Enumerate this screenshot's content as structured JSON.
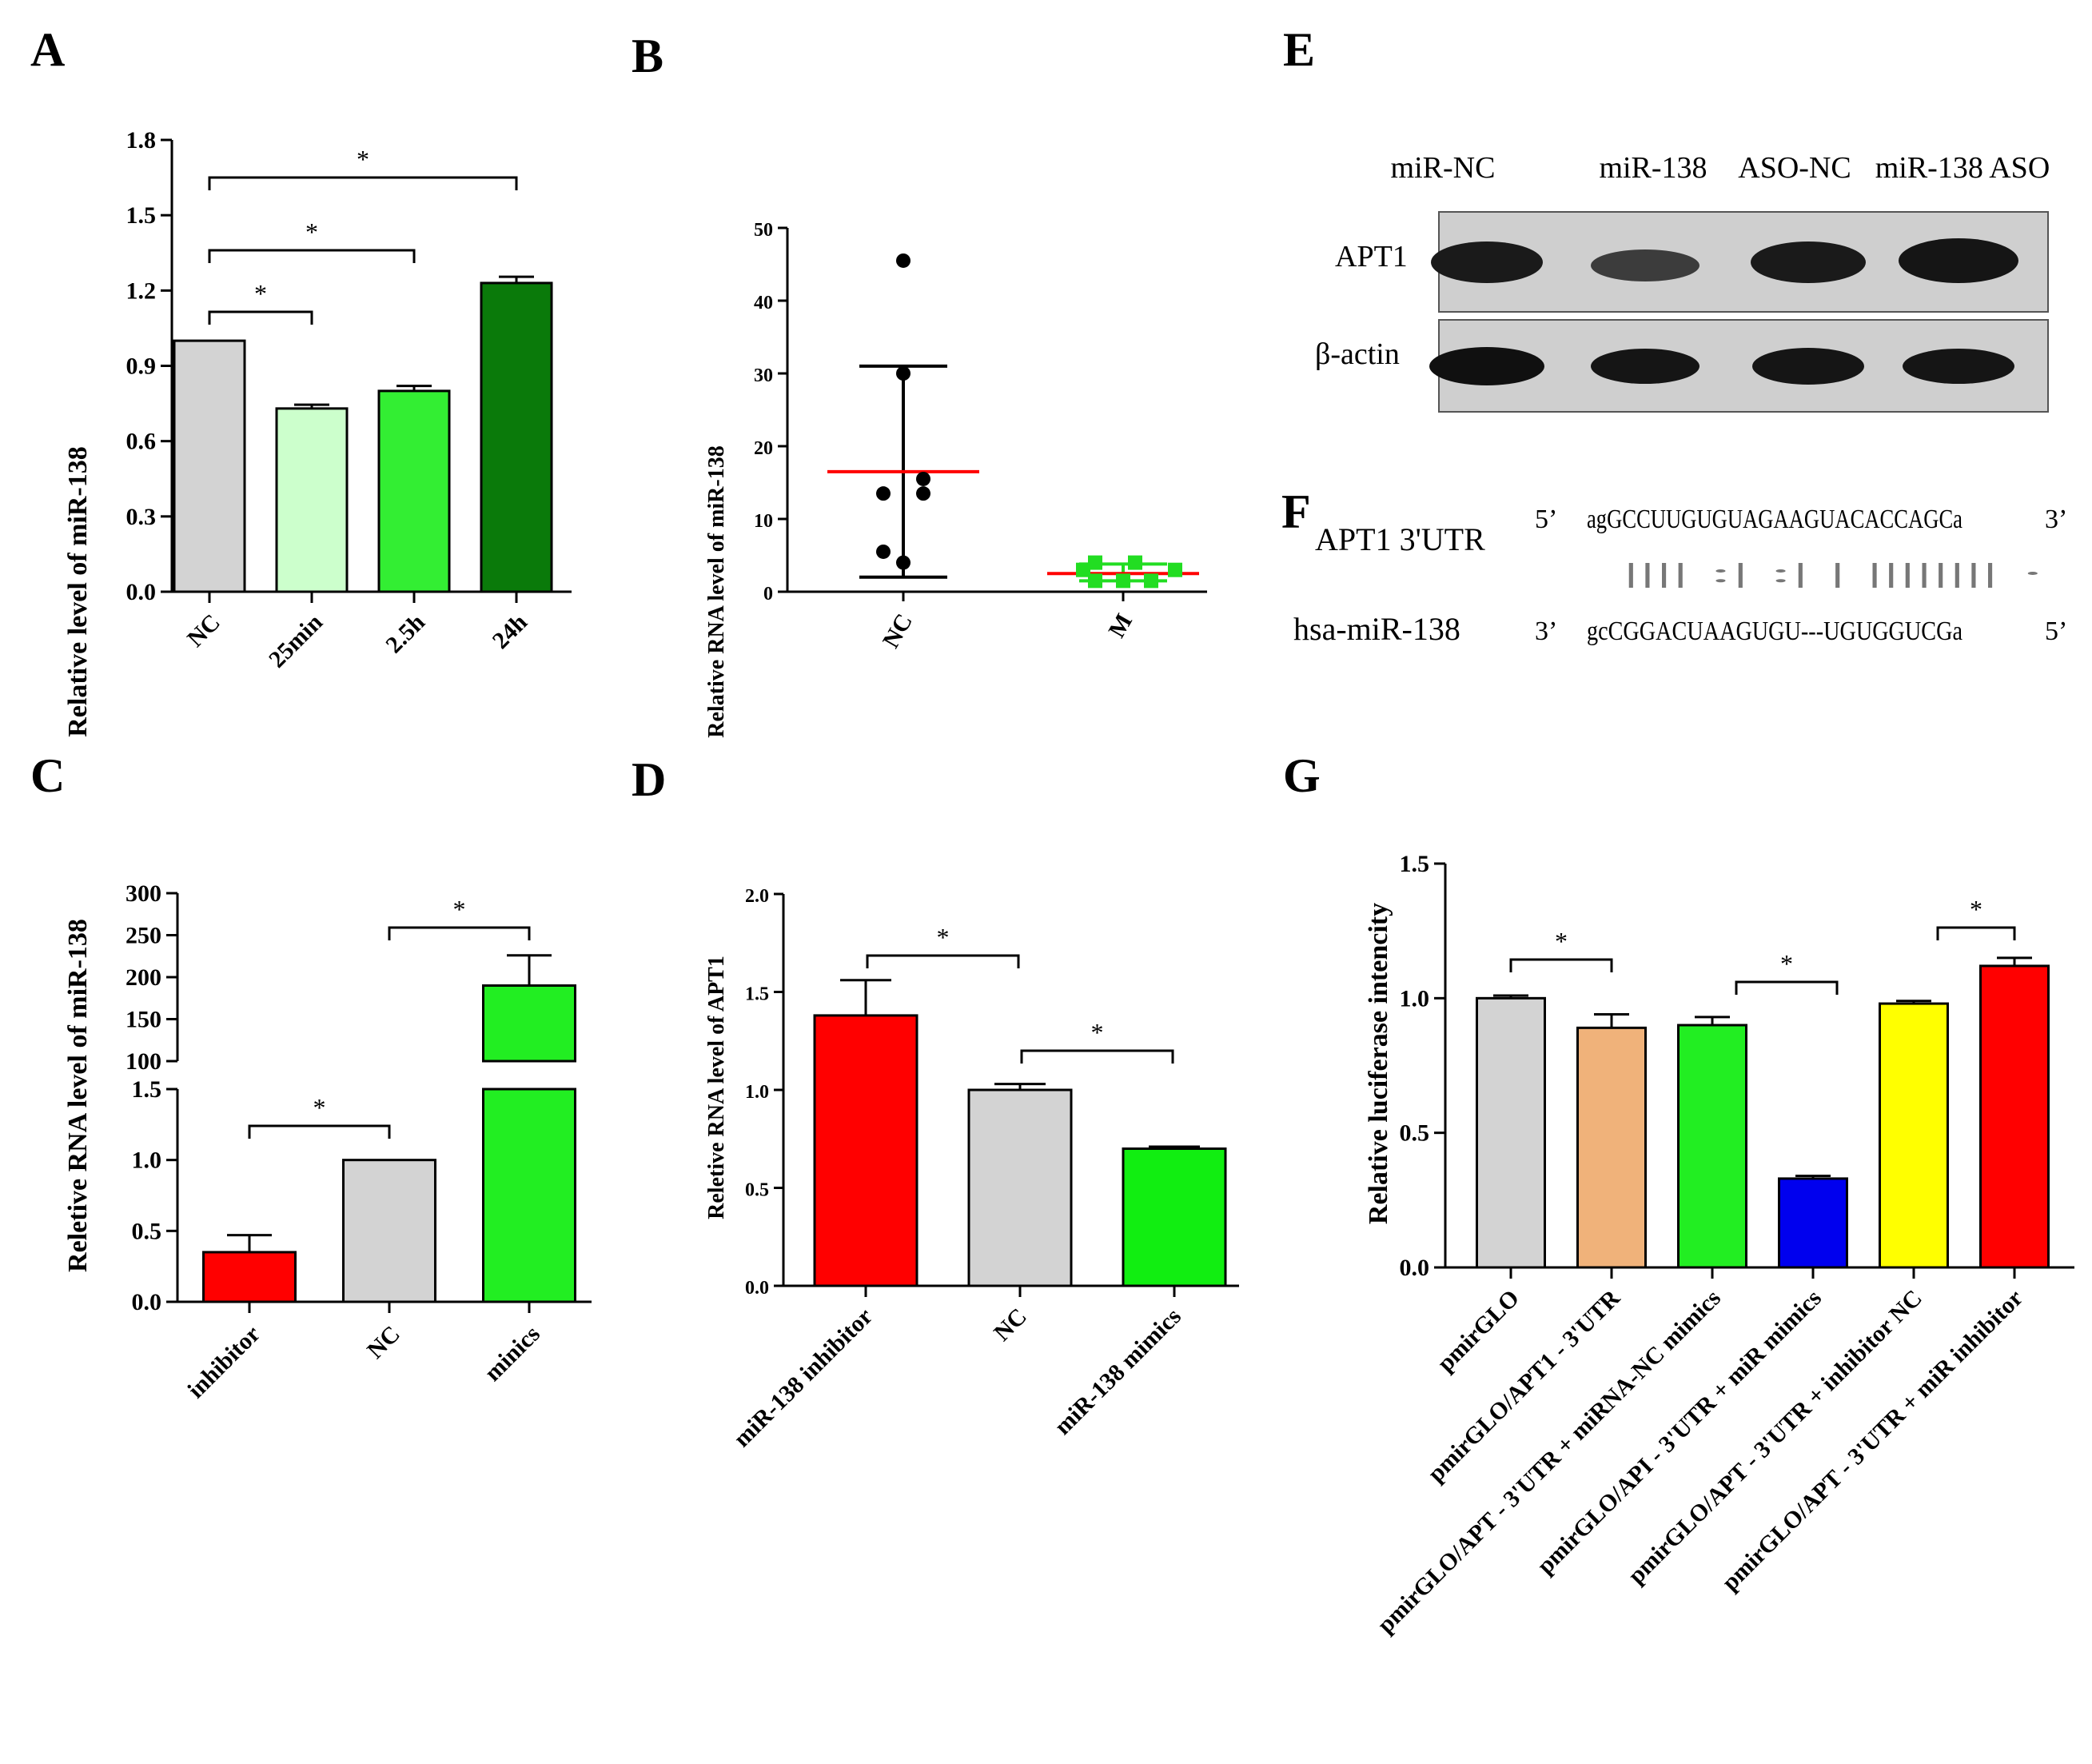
{
  "figure": {
    "panel_letters": {
      "A": "A",
      "B": "B",
      "C": "C",
      "D": "D",
      "E": "E",
      "F": "F",
      "G": "G"
    }
  },
  "chart_data": [
    {
      "panel": "A",
      "type": "bar",
      "ylabel": "Relative level of  miR-138",
      "ylim": [
        0,
        1.8
      ],
      "yticks": [
        "0.0",
        "0.3",
        "0.6",
        "0.9",
        "1.2",
        "1.5",
        "1.8"
      ],
      "categories": [
        "NC",
        "25min",
        "2.5h",
        "24h"
      ],
      "values": [
        1.0,
        0.73,
        0.8,
        1.23
      ],
      "errors": [
        0.0,
        0.015,
        0.02,
        0.025
      ],
      "colors": [
        "#d3d3d3",
        "#ccffcc",
        "#33ee33",
        "#0a7a0a"
      ],
      "significance": [
        {
          "from": 0,
          "to": 1,
          "label": "*"
        },
        {
          "from": 0,
          "to": 2,
          "label": "*"
        },
        {
          "from": 0,
          "to": 3,
          "label": "*"
        }
      ]
    },
    {
      "panel": "B",
      "type": "scatter",
      "ylabel": "Relative RNA level of miR-138",
      "ylim": [
        0,
        50
      ],
      "yticks": [
        "0",
        "10",
        "20",
        "30",
        "40",
        "50"
      ],
      "categories": [
        "NC",
        "M"
      ],
      "groups": [
        {
          "category": "NC",
          "points": [
            45.5,
            30,
            15.5,
            13.5,
            13.5,
            5.5,
            4
          ],
          "mean": 16.5,
          "sd_low": 2,
          "sd_high": 31,
          "color": "#000000",
          "mean_color": "#ff0000"
        },
        {
          "category": "M",
          "points": [
            4,
            4,
            3,
            3,
            1.5,
            1.5,
            1.5
          ],
          "mean": 2.5,
          "sd_low": 1.5,
          "sd_high": 3.8,
          "color": "#22dd22",
          "mean_color": "#ff0000"
        }
      ]
    },
    {
      "panel": "C",
      "type": "bar",
      "ylabel": "Reletive RNA level of miR-138",
      "broken_axis": true,
      "yticks_lower": [
        "0.0",
        "0.5",
        "1.0",
        "1.5"
      ],
      "yticks_upper": [
        "100",
        "150",
        "200",
        "250",
        "300"
      ],
      "categories": [
        "inhibitor",
        "NC",
        "minics"
      ],
      "values": [
        0.35,
        1.0,
        190
      ],
      "errors": [
        0.12,
        0.0,
        36
      ],
      "colors": [
        "#ff0000",
        "#d3d3d3",
        "#22ee22"
      ],
      "significance": [
        {
          "from": 0,
          "to": 1,
          "label": "*"
        },
        {
          "from": 1,
          "to": 2,
          "label": "*"
        }
      ]
    },
    {
      "panel": "D",
      "type": "bar",
      "ylabel": "Reletive RNA level of APT1",
      "ylim": [
        0,
        2.0
      ],
      "yticks": [
        "0.0",
        "0.5",
        "1.0",
        "1.5",
        "2.0"
      ],
      "categories": [
        "miR-138 inhibitor",
        "NC",
        "miR-138 mimics"
      ],
      "values": [
        1.38,
        1.0,
        0.7
      ],
      "errors": [
        0.18,
        0.03,
        0.01
      ],
      "colors": [
        "#ff0000",
        "#d3d3d3",
        "#11ee11"
      ],
      "significance": [
        {
          "from": 0,
          "to": 1,
          "label": "*"
        },
        {
          "from": 1,
          "to": 2,
          "label": "*"
        }
      ]
    },
    {
      "panel": "G",
      "type": "bar",
      "ylabel": "Relative luciferase intencity",
      "ylim": [
        0,
        1.5
      ],
      "yticks": [
        "0.0",
        "0.5",
        "1.0",
        "1.5"
      ],
      "categories": [
        "pmirGLO",
        "pmirGLO/APT1 - 3'UTR",
        "pmirGLO/APT - 3'UTR + miRNA-NC mimics",
        "pmirGLO/API - 3'UTR + miR mimics",
        "pmirGLO/APT - 3'UTR + inhibitor NC",
        "pmirGLO/APT - 3'UTR + miR inhibitor"
      ],
      "values": [
        1.0,
        0.89,
        0.9,
        0.33,
        0.98,
        1.12
      ],
      "errors": [
        0.01,
        0.05,
        0.03,
        0.01,
        0.01,
        0.03
      ],
      "colors": [
        "#d3d3d3",
        "#f0b27a",
        "#22ee22",
        "#0000ee",
        "#ffff00",
        "#ff0000"
      ],
      "significance": [
        {
          "from": 0,
          "to": 1,
          "label": "*"
        },
        {
          "from": 2,
          "to": 3,
          "label": "*"
        },
        {
          "from": 4,
          "to": 5,
          "label": "*"
        }
      ]
    }
  ],
  "western_blot": {
    "lanes": [
      "miR-NC",
      "miR-138",
      "ASO-NC",
      "miR-138 ASO"
    ],
    "rows": [
      "APT1",
      "β-actin"
    ]
  },
  "sequence": {
    "label1": "APT1 3'UTR",
    "label2": "hsa-miR-138",
    "p1_left": "5’",
    "p1_right": "3’",
    "p2_left": "3’",
    "p2_right": "5’",
    "seq1": "agGCCUUGUGUAGAAGUACACCAGCa",
    "pairs": "||||  :|  :|  |     ||||||||  ·",
    "seq2": "gcCGGACUAAGUGU---UGUGGUCGa"
  }
}
